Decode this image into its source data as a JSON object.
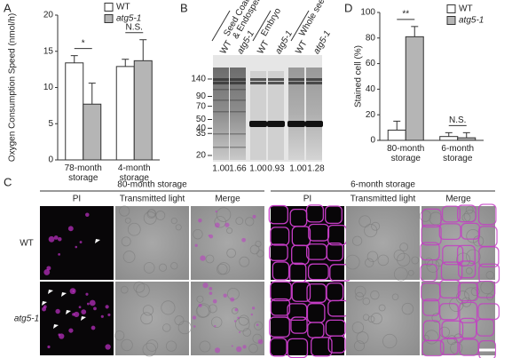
{
  "chart_data": [
    {
      "type": "bar",
      "panel_label": "A",
      "ylabel": "Oxygen Consumption Speed (nmol/h)",
      "categories": [
        "78-month storage",
        "4-month storage"
      ],
      "series": [
        {
          "name": "WT",
          "color": "#ffffff",
          "values": [
            13.4,
            12.9
          ],
          "errors": [
            1.0,
            1.0
          ]
        },
        {
          "name": "atg5-1",
          "color": "#b5b5b5",
          "values": [
            7.7,
            13.7
          ],
          "errors": [
            2.9,
            2.9
          ]
        }
      ],
      "significance": [
        "*",
        "N.S."
      ],
      "ylim": [
        0,
        20
      ],
      "yticks": [
        0,
        5,
        10,
        15,
        20
      ],
      "grid": false
    },
    {
      "type": "bar",
      "panel_label": "D",
      "ylabel": "Stained cell (%)",
      "categories": [
        "80-month storage",
        "6-month storage"
      ],
      "series": [
        {
          "name": "WT",
          "color": "#ffffff",
          "values": [
            8,
            3
          ],
          "errors": [
            7,
            3
          ]
        },
        {
          "name": "atg5-1",
          "color": "#b5b5b5",
          "values": [
            81,
            2
          ],
          "errors": [
            8,
            4
          ]
        }
      ],
      "significance": [
        "**",
        "N.S."
      ],
      "ylim": [
        0,
        100
      ],
      "yticks": [
        0,
        20,
        40,
        60,
        80,
        100
      ],
      "grid": false
    }
  ],
  "blot": {
    "panel_label": "B",
    "groups": [
      [
        "Seed Coat",
        "& Endosperm"
      ],
      [
        "Embryo"
      ],
      [
        "Whole seed"
      ]
    ],
    "lanes": [
      "WT",
      "atg5-1",
      "WT",
      "atg5-1",
      "WT",
      "atg5-1"
    ],
    "markers": [
      140,
      90,
      70,
      50,
      40,
      35,
      20
    ],
    "ratios": [
      "1.00",
      "1.66",
      "1.00",
      "0.93",
      "1.00",
      "1.28"
    ]
  },
  "micrographs": {
    "panel_label": "C",
    "groups": [
      {
        "title": "80-month storage",
        "columns": [
          "PI",
          "Transmitted light",
          "Merge"
        ]
      },
      {
        "title": "6-month storage",
        "columns": [
          "PI",
          "Transmitted light",
          "Merge"
        ]
      }
    ],
    "rows": [
      "WT",
      "atg5-1"
    ]
  }
}
